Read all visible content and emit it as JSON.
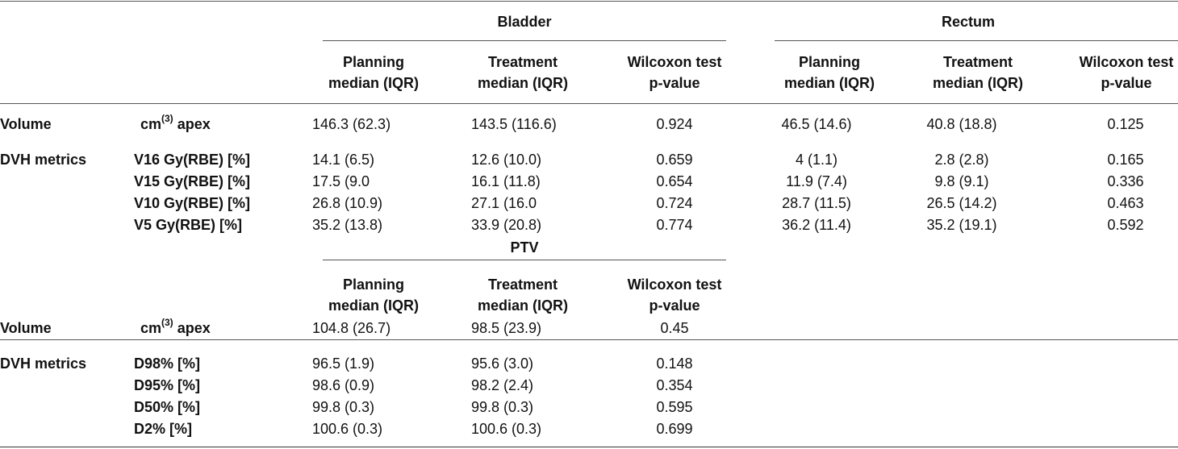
{
  "groups": {
    "bladder": "Bladder",
    "rectum": "Rectum",
    "ptv": "PTV"
  },
  "headers": {
    "planning_l1": "Planning",
    "planning_l2": "median (IQR)",
    "treatment_l1": "Treatment",
    "treatment_l2": "median (IQR)",
    "wilcoxon_l1": "Wilcoxon test",
    "wilcoxon_l2": "p-value"
  },
  "section1": {
    "volume_label": "Volume",
    "volume_unit_prefix": "cm",
    "volume_unit_sup": "(3)",
    "volume_unit_suffix": " apex",
    "volume_row": [
      "146.3 (62.3)",
      "143.5 (116.6)",
      "0.924",
      "46.5 (14.6)",
      "40.8 (18.8)",
      "0.125"
    ],
    "dvh_label": "DVH metrics",
    "dvh_rows": [
      {
        "metric": "V16 Gy(RBE) [%]",
        "values": [
          "14.1 (6.5)",
          "12.6 (10.0)",
          "0.659",
          "4 (1.1)",
          "2.8 (2.8)",
          "0.165"
        ]
      },
      {
        "metric": "V15 Gy(RBE) [%]",
        "values": [
          "17.5 (9.0",
          "16.1 (11.8)",
          "0.654",
          "11.9 (7.4)",
          "9.8 (9.1)",
          "0.336"
        ]
      },
      {
        "metric": "V10 Gy(RBE) [%]",
        "values": [
          "26.8 (10.9)",
          "27.1 (16.0",
          "0.724",
          "28.7 (11.5)",
          "26.5 (14.2)",
          "0.463"
        ]
      },
      {
        "metric": "V5 Gy(RBE) [%]",
        "values": [
          "35.2 (13.8)",
          "33.9 (20.8)",
          "0.774",
          "36.2 (11.4)",
          "35.2 (19.1)",
          "0.592"
        ]
      }
    ]
  },
  "section2": {
    "volume_label": "Volume",
    "volume_unit_prefix": "cm",
    "volume_unit_sup": "(3)",
    "volume_unit_suffix": " apex",
    "volume_row": [
      "104.8 (26.7)",
      "98.5 (23.9)",
      "0.45"
    ],
    "dvh_label": "DVH metrics",
    "dvh_rows": [
      {
        "metric": "D98% [%]",
        "values": [
          "96.5 (1.9)",
          "95.6 (3.0)",
          "0.148"
        ]
      },
      {
        "metric": "D95% [%]",
        "values": [
          "98.6 (0.9)",
          "98.2 (2.4)",
          "0.354"
        ]
      },
      {
        "metric": "D50% [%]",
        "values": [
          "99.8 (0.3)",
          "99.8 (0.3)",
          "0.595"
        ]
      },
      {
        "metric": "D2% [%]",
        "values": [
          "100.6 (0.3)",
          "100.6 (0.3)",
          "0.699"
        ]
      }
    ]
  }
}
